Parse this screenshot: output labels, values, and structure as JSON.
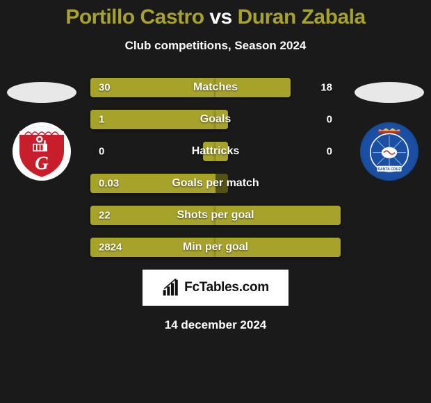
{
  "title": {
    "player1": "Portillo Castro",
    "vs": "vs",
    "player2": "Duran Zabala",
    "player1_color": "#a7a32a",
    "vs_color": "#ffffff",
    "player2_color": "#a7a32a"
  },
  "subtitle": "Club competitions, Season 2024",
  "colors": {
    "left_fill": "#a7a32a",
    "left_base": "#555217",
    "right_fill": "#a7a32a",
    "right_base": "#555217",
    "background": "#1a1a1a",
    "text": "#ffffff"
  },
  "bars": [
    {
      "label": "Matches",
      "left_val": "30",
      "right_val": "18",
      "left_pct": 100,
      "right_pct": 60
    },
    {
      "label": "Goals",
      "left_val": "1",
      "right_val": "0",
      "left_pct": 100,
      "right_pct": 10
    },
    {
      "label": "Hattricks",
      "left_val": "0",
      "right_val": "0",
      "left_pct": 10,
      "right_pct": 10
    },
    {
      "label": "Goals per match",
      "left_val": "0.03",
      "right_val": "",
      "left_pct": 100,
      "right_pct": 0
    },
    {
      "label": "Shots per goal",
      "left_val": "22",
      "right_val": "",
      "left_pct": 100,
      "right_pct": 100
    },
    {
      "label": "Min per goal",
      "left_val": "2824",
      "right_val": "",
      "left_pct": 100,
      "right_pct": 100
    }
  ],
  "footer": {
    "brand": "FcTables.com",
    "date": "14 december 2024"
  },
  "crest_left": {
    "bg": "#ffffff",
    "accent": "#c81e2b",
    "letter": "G"
  },
  "crest_right": {
    "bg": "#1a4fa3",
    "accent_yellow": "#f2c73a",
    "accent_red": "#c62828",
    "ribbon_text": "SANTA CRUZ"
  }
}
